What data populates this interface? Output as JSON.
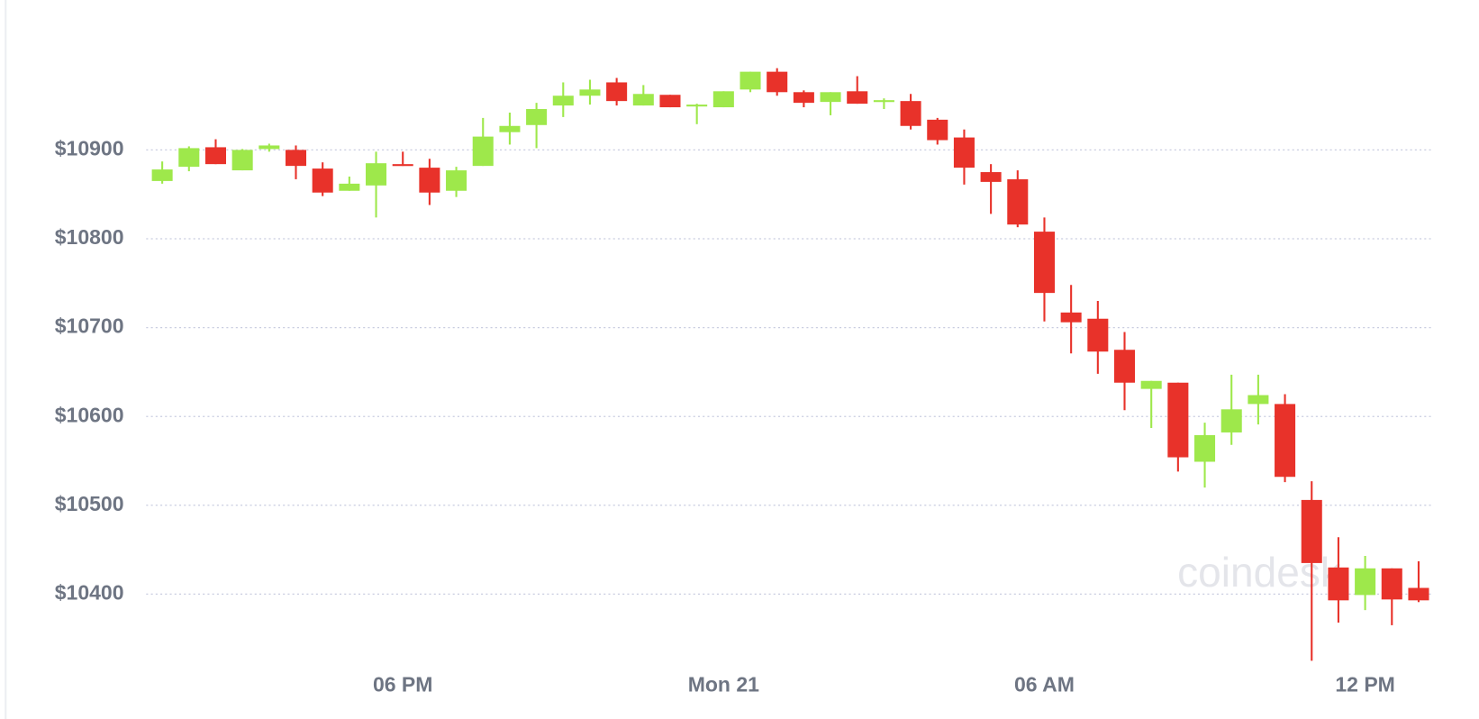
{
  "chart_data": {
    "type": "candlestick",
    "categories": [
      null,
      null,
      null,
      null,
      null,
      null,
      null,
      null,
      null,
      "06 PM",
      null,
      null,
      null,
      null,
      null,
      null,
      null,
      null,
      null,
      null,
      null,
      "Mon 21",
      null,
      null,
      null,
      null,
      null,
      null,
      null,
      null,
      null,
      null,
      null,
      "06 AM",
      null,
      null,
      null,
      null,
      null,
      null,
      null,
      null,
      null,
      null,
      null,
      "12 PM",
      null,
      null
    ],
    "open": [
      10865,
      10881,
      10903,
      10877,
      10901,
      10900,
      10879,
      10854,
      10860,
      10884,
      10880,
      10854,
      10882,
      10920,
      10928,
      10950,
      10961,
      10976,
      10950,
      10962,
      10950,
      10948,
      10968,
      10988,
      10965,
      10954,
      10966,
      10954,
      10955,
      10934,
      10914,
      10875,
      10867,
      10808,
      10717,
      10710,
      10675,
      10631,
      10638,
      10549,
      10582,
      10614,
      10614,
      10506,
      10430,
      10399,
      10429,
      10407
    ],
    "high": [
      10887,
      10904,
      10912,
      10901,
      10907,
      10905,
      10886,
      10870,
      10898,
      10898,
      10890,
      10881,
      10936,
      10942,
      10953,
      10976,
      10979,
      10981,
      10973,
      10962,
      10952,
      10966,
      10988,
      10992,
      10967,
      10965,
      10983,
      10958,
      10963,
      10936,
      10923,
      10884,
      10877,
      10824,
      10748,
      10730,
      10695,
      10640,
      10638,
      10593,
      10647,
      10647,
      10625,
      10527,
      10464,
      10443,
      10429,
      10437
    ],
    "low": [
      10862,
      10876,
      10884,
      10877,
      10898,
      10867,
      10848,
      10854,
      10824,
      10882,
      10838,
      10847,
      10882,
      10906,
      10902,
      10937,
      10951,
      10950,
      10950,
      10948,
      10929,
      10948,
      10965,
      10961,
      10948,
      10939,
      10952,
      10946,
      10923,
      10906,
      10861,
      10828,
      10813,
      10707,
      10671,
      10648,
      10607,
      10587,
      10538,
      10520,
      10568,
      10591,
      10526,
      10325,
      10368,
      10382,
      10365,
      10391
    ],
    "close": [
      10878,
      10902,
      10884,
      10900,
      10905,
      10882,
      10852,
      10862,
      10885,
      10882,
      10852,
      10877,
      10915,
      10927,
      10946,
      10961,
      10968,
      10955,
      10963,
      10948,
      10951,
      10966,
      10988,
      10965,
      10953,
      10965,
      10952,
      10956,
      10927,
      10911,
      10880,
      10864,
      10816,
      10739,
      10706,
      10673,
      10638,
      10640,
      10554,
      10579,
      10608,
      10624,
      10532,
      10435,
      10393,
      10429,
      10394,
      10393
    ],
    "up_color": "#9ee84b",
    "down_color": "#e8322a",
    "ylim": [
      10320,
      11005
    ],
    "yticks": [
      {
        "value": 10400,
        "label": "$10400"
      },
      {
        "value": 10500,
        "label": "$10500"
      },
      {
        "value": 10600,
        "label": "$10600"
      },
      {
        "value": 10700,
        "label": "$10700"
      },
      {
        "value": 10800,
        "label": "$10800"
      },
      {
        "value": 10900,
        "label": "$10900"
      }
    ],
    "grid": true,
    "watermark": "coindesk"
  }
}
